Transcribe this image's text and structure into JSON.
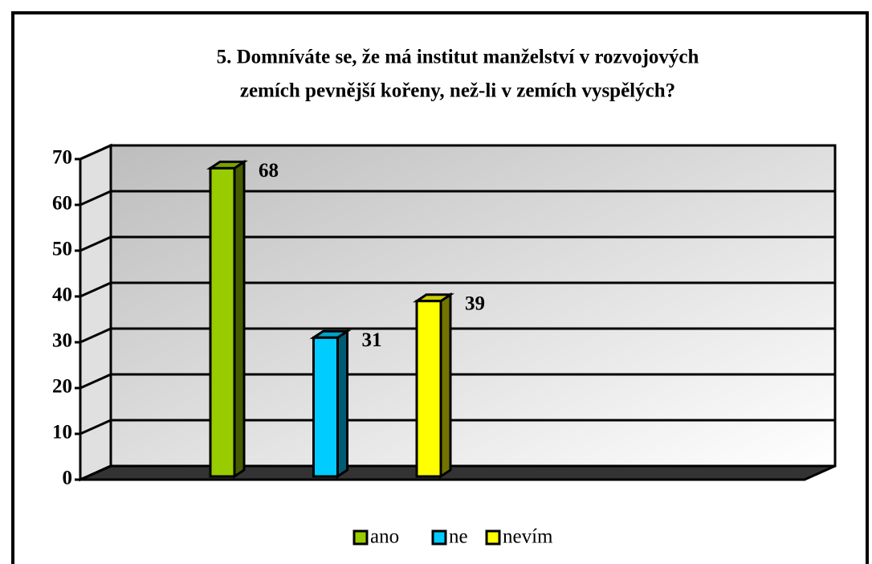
{
  "chart_data": {
    "type": "bar3d",
    "title": [
      "5. Domníváte se, že má institut manželství v rozvojových",
      "zemích pevnější kořeny, než-li v zemích vyspělých?"
    ],
    "series": [
      {
        "name": "ano",
        "color": "#99cc00",
        "values": [
          68
        ]
      },
      {
        "name": "ne",
        "color": "#00ccff",
        "values": [
          31
        ]
      },
      {
        "name": "nevím",
        "color": "#ffff00",
        "values": [
          39
        ]
      }
    ],
    "ylim": [
      0,
      70
    ],
    "yticks": [
      0,
      10,
      20,
      30,
      40,
      50,
      60,
      70
    ],
    "grid": true,
    "legend": "bottom"
  }
}
